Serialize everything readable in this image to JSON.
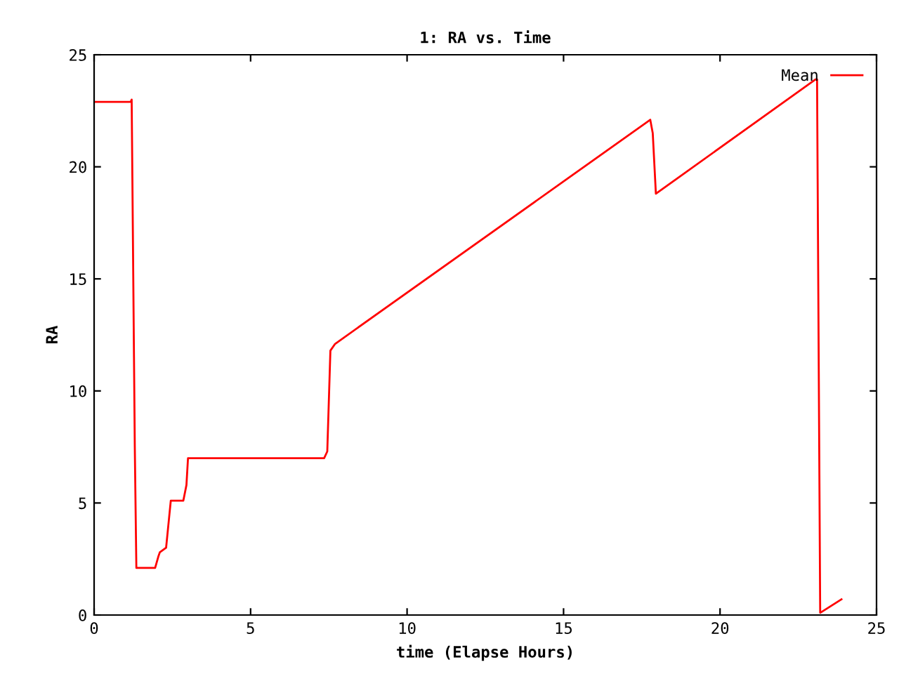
{
  "chart_data": {
    "type": "line",
    "title": "1: RA vs. Time",
    "xlabel": "time (Elapse Hours)",
    "ylabel": "RA",
    "series": [
      {
        "name": "Mean",
        "color": "#ff0000",
        "x": [
          0,
          1.17,
          1.2,
          1.3,
          1.35,
          1.95,
          2.05,
          2.1,
          2.3,
          2.45,
          2.85,
          2.95,
          3.0,
          7.35,
          7.45,
          7.55,
          7.7,
          17.77,
          17.85,
          17.95,
          23.05,
          23.1,
          23.2,
          23.88
        ],
        "values": [
          22.9,
          22.9,
          23.0,
          7.5,
          2.1,
          2.1,
          2.6,
          2.8,
          3.0,
          5.1,
          5.1,
          5.8,
          7.0,
          7.0,
          7.3,
          11.8,
          12.1,
          22.1,
          21.5,
          18.8,
          23.9,
          23.9,
          0.1,
          0.7
        ]
      }
    ],
    "xlim": [
      0,
      25
    ],
    "ylim": [
      0,
      25
    ],
    "xticks": [
      0,
      5,
      10,
      15,
      20,
      25
    ],
    "yticks": [
      0,
      5,
      10,
      15,
      20,
      25
    ],
    "legend": "top right",
    "grid": false
  }
}
